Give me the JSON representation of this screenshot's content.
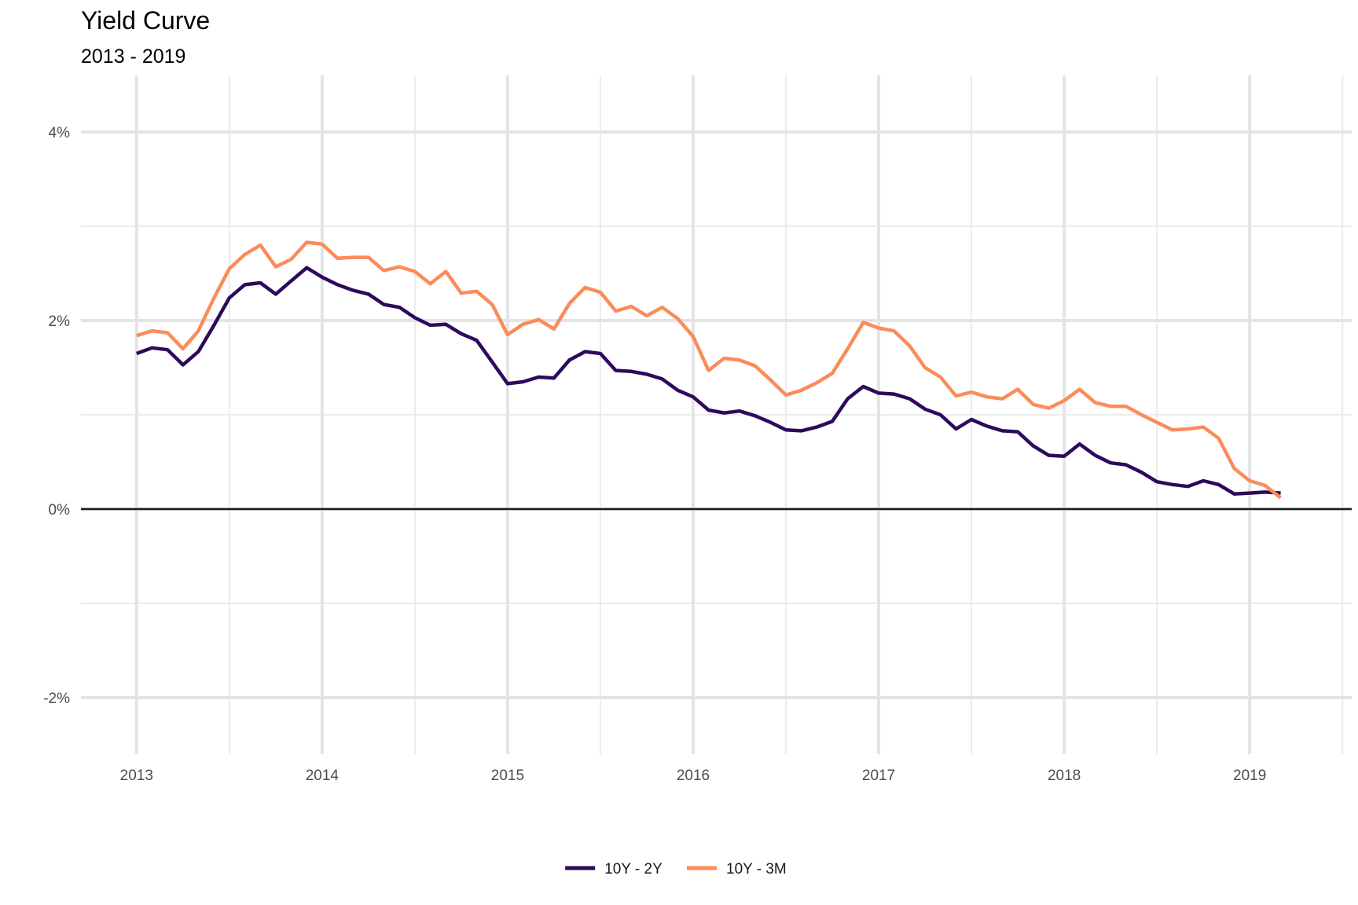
{
  "chart_data": {
    "type": "line",
    "title": "Yield Curve",
    "subtitle": "2013 - 2019",
    "xlabel": "",
    "ylabel": "",
    "xlim": [
      2012.7,
      2019.55
    ],
    "ylim": [
      -2.6,
      4.6
    ],
    "x_ticks": [
      2013,
      2014,
      2015,
      2016,
      2017,
      2018,
      2019
    ],
    "x_tick_labels": [
      "2013",
      "2014",
      "2015",
      "2016",
      "2017",
      "2018",
      "2019"
    ],
    "y_ticks": [
      -2,
      0,
      2,
      4
    ],
    "y_tick_labels": [
      "-2%",
      "0%",
      "2%",
      "4%"
    ],
    "grid": true,
    "zero_line": true,
    "legend_position": "bottom",
    "series": [
      {
        "name": "10Y - 2Y",
        "color": "#2d0a5c",
        "values": [
          [
            2013.0,
            1.65
          ],
          [
            2013.083,
            1.71
          ],
          [
            2013.167,
            1.69
          ],
          [
            2013.25,
            1.53
          ],
          [
            2013.333,
            1.67
          ],
          [
            2013.417,
            1.95
          ],
          [
            2013.5,
            2.24
          ],
          [
            2013.583,
            2.38
          ],
          [
            2013.667,
            2.4
          ],
          [
            2013.75,
            2.28
          ],
          [
            2013.833,
            2.42
          ],
          [
            2013.917,
            2.56
          ],
          [
            2014.0,
            2.46
          ],
          [
            2014.083,
            2.38
          ],
          [
            2014.167,
            2.32
          ],
          [
            2014.25,
            2.28
          ],
          [
            2014.333,
            2.17
          ],
          [
            2014.417,
            2.14
          ],
          [
            2014.5,
            2.03
          ],
          [
            2014.583,
            1.95
          ],
          [
            2014.667,
            1.96
          ],
          [
            2014.75,
            1.86
          ],
          [
            2014.833,
            1.79
          ],
          [
            2014.917,
            1.56
          ],
          [
            2015.0,
            1.33
          ],
          [
            2015.083,
            1.35
          ],
          [
            2015.167,
            1.4
          ],
          [
            2015.25,
            1.39
          ],
          [
            2015.333,
            1.58
          ],
          [
            2015.417,
            1.67
          ],
          [
            2015.5,
            1.65
          ],
          [
            2015.583,
            1.47
          ],
          [
            2015.667,
            1.46
          ],
          [
            2015.75,
            1.43
          ],
          [
            2015.833,
            1.38
          ],
          [
            2015.917,
            1.26
          ],
          [
            2016.0,
            1.19
          ],
          [
            2016.083,
            1.05
          ],
          [
            2016.167,
            1.02
          ],
          [
            2016.25,
            1.04
          ],
          [
            2016.333,
            0.99
          ],
          [
            2016.417,
            0.92
          ],
          [
            2016.5,
            0.84
          ],
          [
            2016.583,
            0.83
          ],
          [
            2016.667,
            0.87
          ],
          [
            2016.75,
            0.93
          ],
          [
            2016.833,
            1.17
          ],
          [
            2016.917,
            1.3
          ],
          [
            2017.0,
            1.23
          ],
          [
            2017.083,
            1.22
          ],
          [
            2017.167,
            1.17
          ],
          [
            2017.25,
            1.06
          ],
          [
            2017.333,
            1.0
          ],
          [
            2017.417,
            0.85
          ],
          [
            2017.5,
            0.95
          ],
          [
            2017.583,
            0.88
          ],
          [
            2017.667,
            0.83
          ],
          [
            2017.75,
            0.82
          ],
          [
            2017.833,
            0.67
          ],
          [
            2017.917,
            0.57
          ],
          [
            2018.0,
            0.56
          ],
          [
            2018.083,
            0.69
          ],
          [
            2018.167,
            0.57
          ],
          [
            2018.25,
            0.49
          ],
          [
            2018.333,
            0.47
          ],
          [
            2018.417,
            0.39
          ],
          [
            2018.5,
            0.29
          ],
          [
            2018.583,
            0.26
          ],
          [
            2018.667,
            0.24
          ],
          [
            2018.75,
            0.3
          ],
          [
            2018.833,
            0.26
          ],
          [
            2018.917,
            0.16
          ],
          [
            2019.0,
            0.17
          ],
          [
            2019.083,
            0.18
          ],
          [
            2019.167,
            0.17
          ]
        ]
      },
      {
        "name": "10Y - 3M",
        "color": "#fb8c5a",
        "values": [
          [
            2013.0,
            1.84
          ],
          [
            2013.083,
            1.89
          ],
          [
            2013.167,
            1.87
          ],
          [
            2013.25,
            1.7
          ],
          [
            2013.333,
            1.89
          ],
          [
            2013.417,
            2.24
          ],
          [
            2013.5,
            2.55
          ],
          [
            2013.583,
            2.7
          ],
          [
            2013.667,
            2.8
          ],
          [
            2013.75,
            2.57
          ],
          [
            2013.833,
            2.65
          ],
          [
            2013.917,
            2.83
          ],
          [
            2014.0,
            2.81
          ],
          [
            2014.083,
            2.66
          ],
          [
            2014.167,
            2.67
          ],
          [
            2014.25,
            2.67
          ],
          [
            2014.333,
            2.53
          ],
          [
            2014.417,
            2.57
          ],
          [
            2014.5,
            2.52
          ],
          [
            2014.583,
            2.39
          ],
          [
            2014.667,
            2.52
          ],
          [
            2014.75,
            2.29
          ],
          [
            2014.833,
            2.31
          ],
          [
            2014.917,
            2.17
          ],
          [
            2015.0,
            1.85
          ],
          [
            2015.083,
            1.96
          ],
          [
            2015.167,
            2.01
          ],
          [
            2015.25,
            1.91
          ],
          [
            2015.333,
            2.18
          ],
          [
            2015.417,
            2.35
          ],
          [
            2015.5,
            2.3
          ],
          [
            2015.583,
            2.1
          ],
          [
            2015.667,
            2.15
          ],
          [
            2015.75,
            2.05
          ],
          [
            2015.833,
            2.14
          ],
          [
            2015.917,
            2.02
          ],
          [
            2016.0,
            1.83
          ],
          [
            2016.083,
            1.47
          ],
          [
            2016.167,
            1.6
          ],
          [
            2016.25,
            1.58
          ],
          [
            2016.333,
            1.52
          ],
          [
            2016.417,
            1.37
          ],
          [
            2016.5,
            1.21
          ],
          [
            2016.583,
            1.26
          ],
          [
            2016.667,
            1.34
          ],
          [
            2016.75,
            1.44
          ],
          [
            2016.833,
            1.7
          ],
          [
            2016.917,
            1.98
          ],
          [
            2017.0,
            1.92
          ],
          [
            2017.083,
            1.89
          ],
          [
            2017.167,
            1.73
          ],
          [
            2017.25,
            1.5
          ],
          [
            2017.333,
            1.4
          ],
          [
            2017.417,
            1.2
          ],
          [
            2017.5,
            1.24
          ],
          [
            2017.583,
            1.19
          ],
          [
            2017.667,
            1.17
          ],
          [
            2017.75,
            1.27
          ],
          [
            2017.833,
            1.11
          ],
          [
            2017.917,
            1.07
          ],
          [
            2018.0,
            1.15
          ],
          [
            2018.083,
            1.27
          ],
          [
            2018.167,
            1.13
          ],
          [
            2018.25,
            1.09
          ],
          [
            2018.333,
            1.09
          ],
          [
            2018.417,
            1.0
          ],
          [
            2018.5,
            0.92
          ],
          [
            2018.583,
            0.84
          ],
          [
            2018.667,
            0.85
          ],
          [
            2018.75,
            0.87
          ],
          [
            2018.833,
            0.75
          ],
          [
            2018.917,
            0.43
          ],
          [
            2019.0,
            0.3
          ],
          [
            2019.083,
            0.25
          ],
          [
            2019.167,
            0.12
          ]
        ]
      }
    ]
  }
}
